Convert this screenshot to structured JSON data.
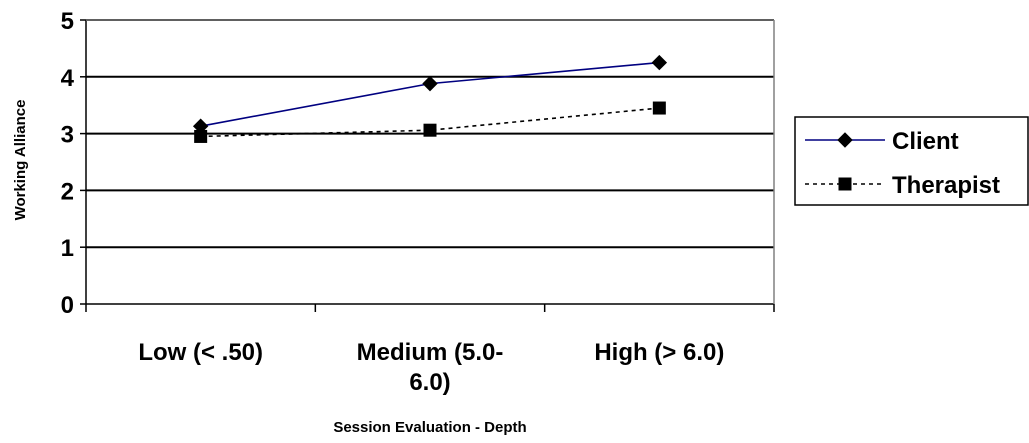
{
  "chart_data": {
    "type": "line",
    "xlabel": "Session Evaluation - Depth",
    "ylabel": "Working Alliance",
    "categories": [
      [
        "Low (< .50)"
      ],
      [
        "Medium (5.0-",
        "6.0)"
      ],
      [
        "High (> 6.0)"
      ]
    ],
    "ylim": [
      0,
      5
    ],
    "yticks": [
      0,
      1,
      2,
      3,
      4,
      5
    ],
    "grid": true,
    "legend_position": "right",
    "series": [
      {
        "name": "Client",
        "values": [
          3.13,
          3.88,
          4.25
        ],
        "color": "#000080",
        "line_style": "solid",
        "marker": "diamond"
      },
      {
        "name": "Therapist",
        "values": [
          2.95,
          3.06,
          3.45
        ],
        "color": "#000000",
        "line_style": "dotted",
        "marker": "square"
      }
    ]
  }
}
